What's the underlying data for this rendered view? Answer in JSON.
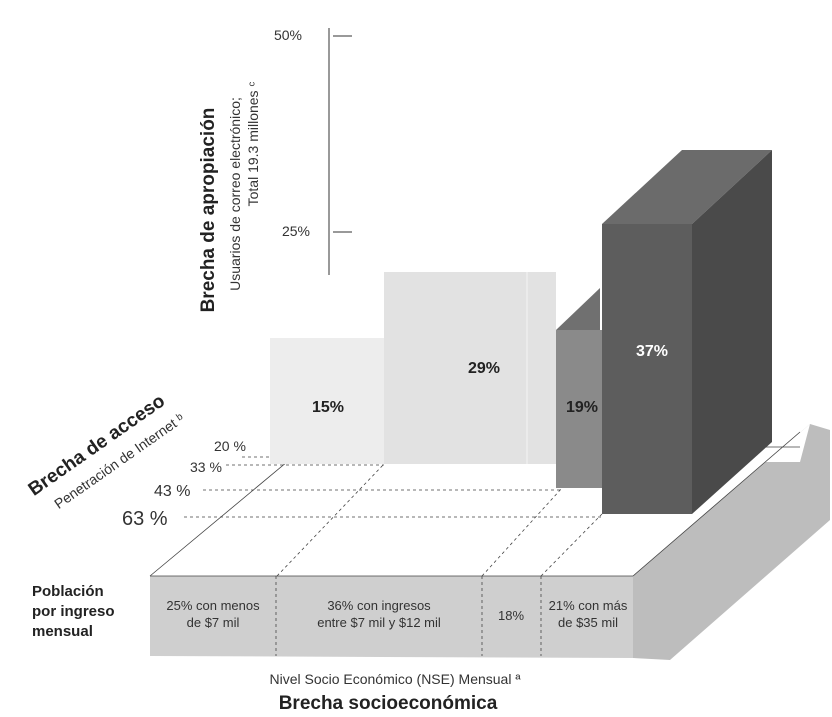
{
  "chart_data": {
    "type": "bar",
    "subtype": "3d-bar",
    "title": "Brecha socioeconómica",
    "xlabel": "Nivel Socio Económico (NSE) Mensual ª",
    "ylabel_main": "Brecha de apropiación",
    "ylabel_sub1": "Usuarios de correo electrónico;",
    "ylabel_sub2": "Total 19.3 millones ᶜ",
    "zlabel_main": "Brecha de acceso",
    "zlabel_sub": "Penetración de Internet ᵇ",
    "ylim": [
      0,
      50
    ],
    "y_ticks": [
      "50%",
      "25%"
    ],
    "depth_ticks": [
      "20 %",
      "33 %",
      "43 %",
      "63 %"
    ],
    "row_label": [
      "Población",
      "por ingreso",
      "mensual"
    ],
    "categories": [
      [
        "25% con menos",
        "de $7 mil"
      ],
      [
        "36% con ingresos",
        "entre $7 mil  y  $12 mil"
      ],
      [
        "18%"
      ],
      [
        "21% con más",
        "de $35 mil"
      ]
    ],
    "population_share": [
      25,
      36,
      18,
      21
    ],
    "internet_penetration": [
      20,
      33,
      43,
      63
    ],
    "values": [
      15,
      29,
      19,
      37
    ],
    "value_labels": [
      "15%",
      "29%",
      "19%",
      "37%"
    ],
    "colors": {
      "bar1": "#ededed",
      "bar2": "#e3e3e3",
      "bar3_front": "#8a8a8a",
      "bar3_side": "#707070",
      "bar4_front": "#5d5d5d",
      "bar4_side": "#4a4a4a",
      "bar4_top": "#6b6b6b",
      "base_front": "#cfcfcf",
      "base_side": "#bdbdbd",
      "text_light": "#ffffff"
    }
  }
}
